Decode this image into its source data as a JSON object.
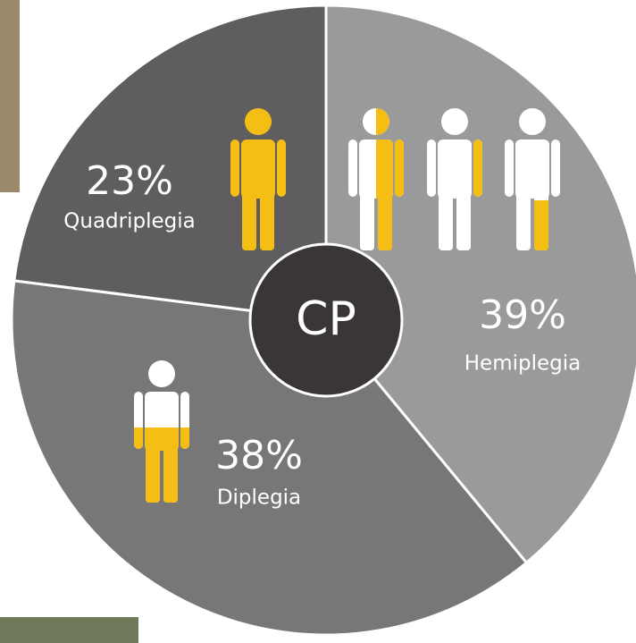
{
  "chart_data": {
    "type": "pie",
    "center_label": "CP",
    "categories": [
      "Hemiplegia",
      "Diplegia",
      "Quadriplegia"
    ],
    "values": [
      39,
      38,
      23
    ],
    "value_labels": [
      "39%",
      "38%",
      "23%"
    ],
    "colors": [
      "#9a9a9b",
      "#787778",
      "#5f5d5f"
    ]
  }
}
